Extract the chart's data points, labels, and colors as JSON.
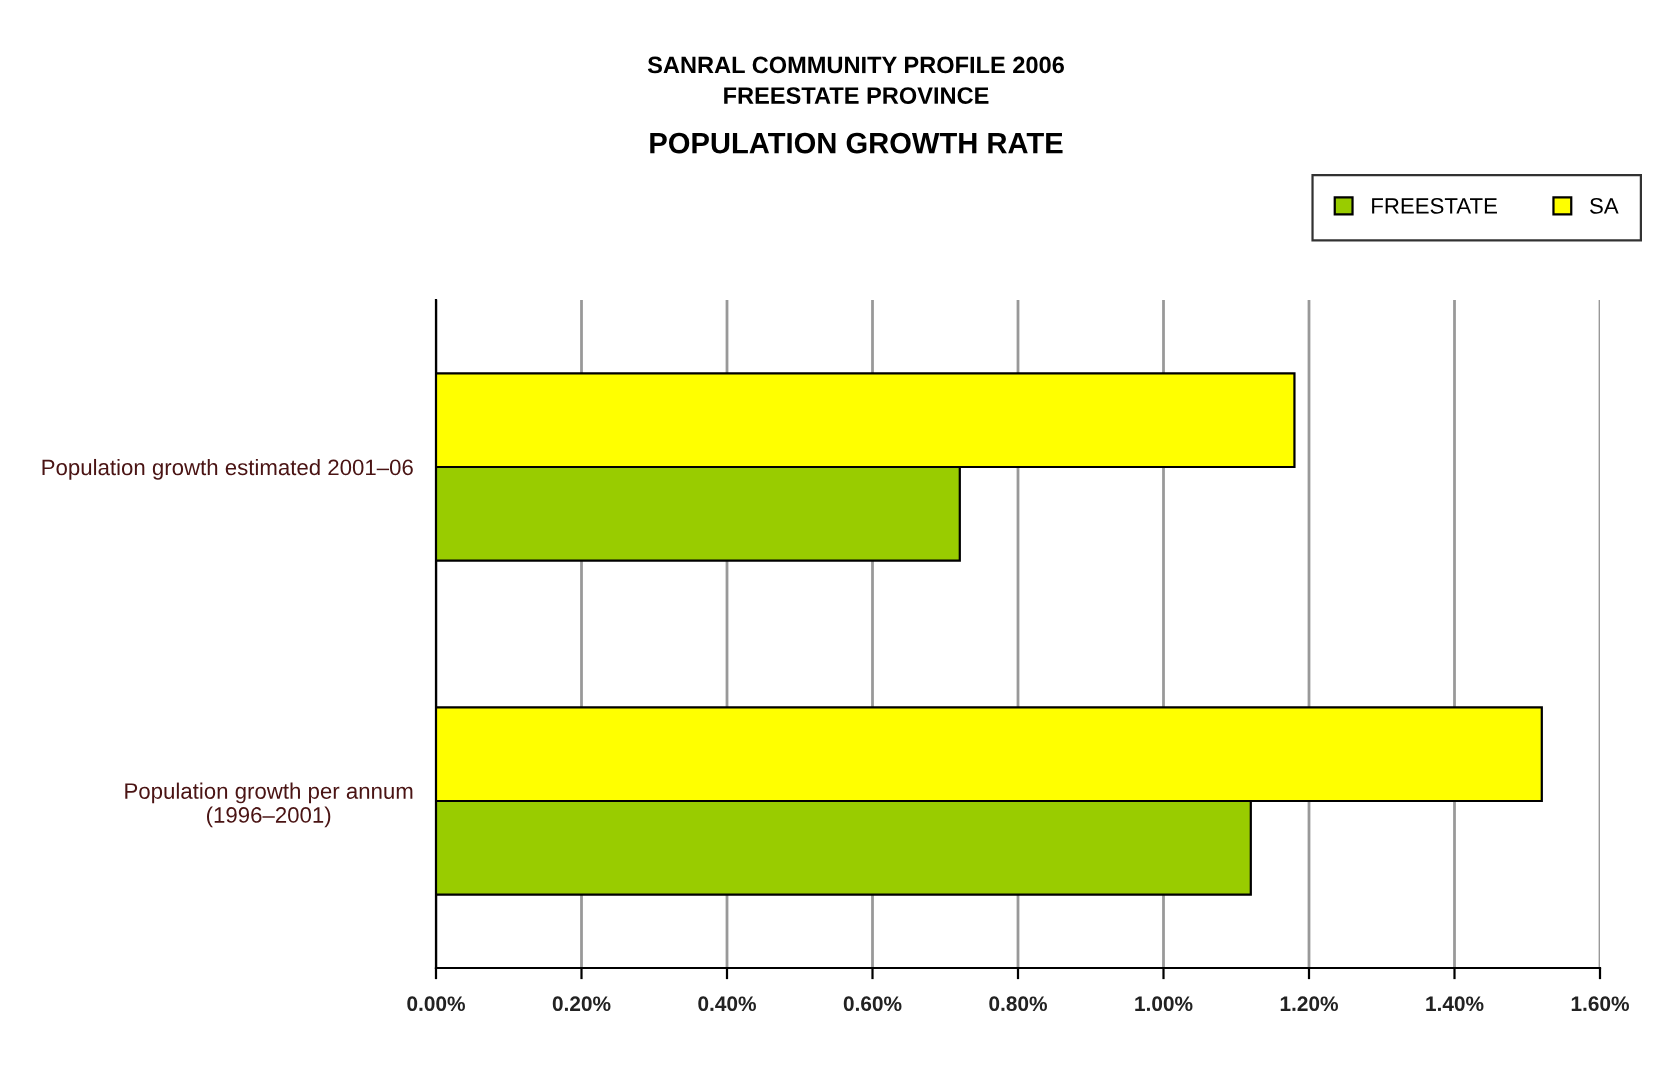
{
  "chart_data": {
    "type": "bar",
    "orientation": "horizontal",
    "title": "POPULATION GROWTH RATE",
    "subtitle": "SANRAL COMMUNITY PROFILE 2006\nFREESTATE PROVINCE",
    "categories": [
      "Population growth estimated 2001–06",
      "Population growth per annum\n(1996–2001)"
    ],
    "series": [
      {
        "name": "FREESTATE",
        "color": "#99cc00",
        "values": [
          0.72,
          1.12
        ]
      },
      {
        "name": "SA",
        "color": "#ffff00",
        "values": [
          1.18,
          1.52
        ]
      }
    ],
    "xlim": [
      0,
      1.6
    ],
    "xticks": [
      {
        "value": 0,
        "label": "0.00%"
      },
      {
        "value": 0.2,
        "label": "0.20%"
      },
      {
        "value": 0.4,
        "label": "0.40%"
      },
      {
        "value": 0.6,
        "label": "0.60%"
      },
      {
        "value": 0.8,
        "label": "0.80%"
      },
      {
        "value": 1.0,
        "label": "1.00%"
      },
      {
        "value": 1.2,
        "label": "1.20%"
      },
      {
        "value": 1.4,
        "label": "1.40%"
      },
      {
        "value": 1.6,
        "label": "1.60%"
      }
    ],
    "grid": "x",
    "legend": "top right"
  }
}
